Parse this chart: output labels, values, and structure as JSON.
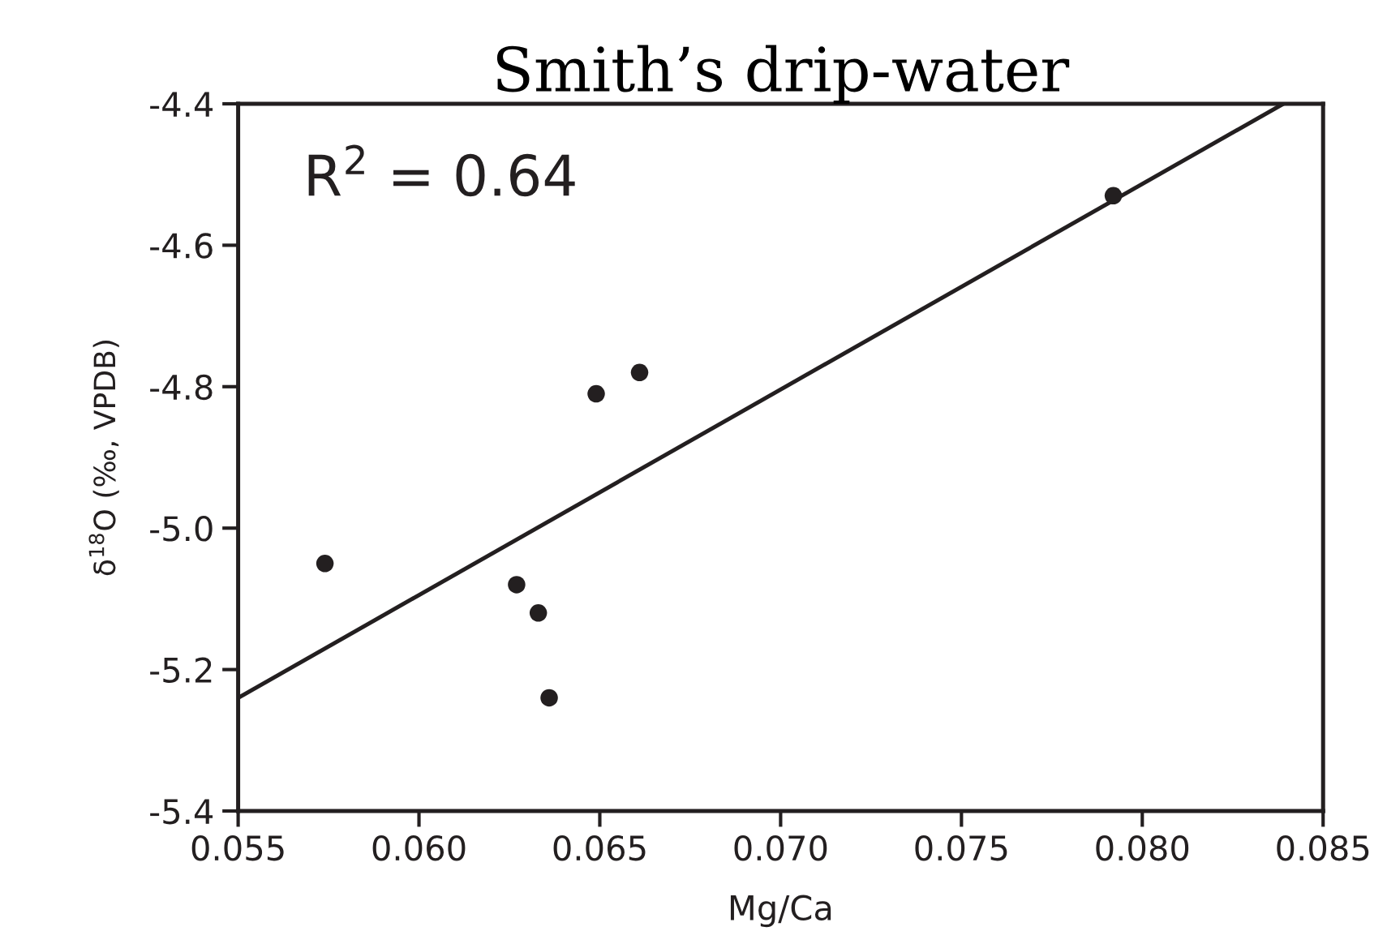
{
  "chart_data": {
    "type": "scatter",
    "title": "Smith’s drip-water",
    "xlabel": "Mg/Ca",
    "ylabel": "δ$^{18}$O (‰, VPDB)",
    "annotations": [
      "R$^{2}$ = 0.64"
    ],
    "series": [
      {
        "color": "#231f20",
        "x": [
          0.0574,
          0.0627,
          0.0633,
          0.0636,
          0.0649,
          0.0661,
          0.0792
        ],
        "values": [
          -5.05,
          -5.08,
          -5.12,
          -5.24,
          -4.81,
          -4.78,
          -4.53
        ]
      },
      {
        "type": "line",
        "color": "#231f20",
        "x": [
          0.055,
          0.0839
        ],
        "values": [
          -5.24,
          -4.4
        ]
      }
    ],
    "xlim": [
      0.055,
      0.085
    ],
    "ylim": [
      -5.4,
      -4.4
    ],
    "xticks": [
      {
        "value": 0.055,
        "label": "0.055"
      },
      {
        "value": 0.06,
        "label": "0.060"
      },
      {
        "value": 0.065,
        "label": "0.065"
      },
      {
        "value": 0.07,
        "label": "0.070"
      },
      {
        "value": 0.075,
        "label": "0.075"
      },
      {
        "value": 0.08,
        "label": "0.080"
      },
      {
        "value": 0.085,
        "label": "0.085"
      }
    ],
    "yticks": [
      {
        "value": -5.4,
        "label": "-5.4"
      },
      {
        "value": -5.2,
        "label": "-5.2"
      },
      {
        "value": -5.0,
        "label": "-5.0"
      },
      {
        "value": -4.8,
        "label": "-4.8"
      },
      {
        "value": -4.6,
        "label": "-4.6"
      },
      {
        "value": -4.4,
        "label": "-4.4"
      }
    ],
    "grid": false,
    "legend": false
  }
}
